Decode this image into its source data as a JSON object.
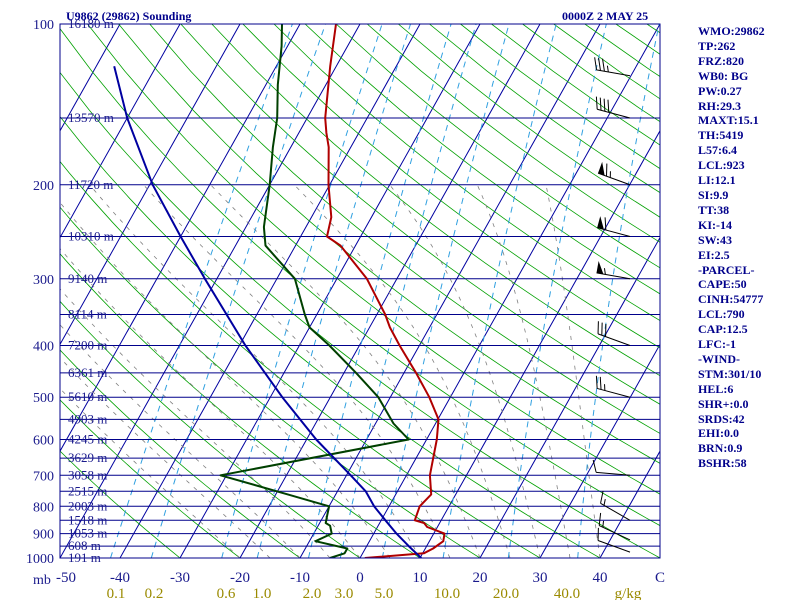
{
  "header": {
    "station": "U9862 (29862) Sounding",
    "time": "0000Z  2 MAY 25"
  },
  "indices": [
    "WMO:29862",
    "TP:262",
    "FRZ:820",
    "WB0: BG",
    "PW:0.27",
    "RH:29.3",
    "MAXT:15.1",
    "TH:5419",
    "L57:6.4",
    "LCL:923",
    "LI:12.1",
    "SI:9.9",
    "TT:38",
    "KI:-14",
    "SW:43",
    "EI:2.5",
    "-PARCEL-",
    "CAPE:50",
    "CINH:54777",
    "LCL:790",
    "CAP:12.5",
    "LFC:-1",
    "-WIND-",
    "STM:301/10",
    "HEL:6",
    "SHR+:0.0",
    "SRDS:42",
    "EHI:0.0",
    "BRN:0.9",
    "BSHR:58"
  ],
  "chart_data": {
    "type": "line",
    "title": "U9862 (29862) Sounding",
    "xlabel": "",
    "ylabel": "mb",
    "xlim": [
      -50,
      50
    ],
    "ylim": [
      1000,
      100
    ],
    "y_scale": "log",
    "grid": true,
    "pressure_levels": [
      100,
      200,
      300,
      400,
      500,
      600,
      700,
      800,
      900,
      1000
    ],
    "temperature_ticks": [
      "-50",
      "-40",
      "-30",
      "-20",
      "-10",
      "0",
      "10",
      "20",
      "30",
      "40",
      "C"
    ],
    "mixing_ratio_labels": [
      "0.1",
      "0.2",
      "0.6",
      "1.0",
      "2.0",
      "3.0",
      "5.0",
      "10.0",
      "20.0",
      "40.0",
      "g/kg"
    ],
    "height_labels": [
      {
        "p": 100,
        "text": "16180 m"
      },
      {
        "p": 150,
        "text": "13570 m"
      },
      {
        "p": 200,
        "text": "11720 m"
      },
      {
        "p": 250,
        "text": "10310 m"
      },
      {
        "p": 300,
        "text": "9140 m"
      },
      {
        "p": 350,
        "text": "8114 m"
      },
      {
        "p": 400,
        "text": "7200 m"
      },
      {
        "p": 450,
        "text": "6361 m"
      },
      {
        "p": 500,
        "text": "5610 m"
      },
      {
        "p": 550,
        "text": "4903 m"
      },
      {
        "p": 600,
        "text": "4245 m"
      },
      {
        "p": 650,
        "text": "3629 m"
      },
      {
        "p": 700,
        "text": "3058 m"
      },
      {
        "p": 750,
        "text": "2515 m"
      },
      {
        "p": 800,
        "text": "2003 m"
      },
      {
        "p": 850,
        "text": "1518 m"
      },
      {
        "p": 900,
        "text": "1053 m"
      },
      {
        "p": 950,
        "text": "608 m"
      },
      {
        "p": 1000,
        "text": "191 m"
      }
    ],
    "series": [
      {
        "key": "temperature",
        "color": "#b00000",
        "points": [
          [
            1000,
            0.8
          ],
          [
            980,
            10.2
          ],
          [
            960,
            11.3
          ],
          [
            930,
            12.3
          ],
          [
            900,
            11.8
          ],
          [
            875,
            8.3
          ],
          [
            860,
            7.4
          ],
          [
            850,
            5.6
          ],
          [
            800,
            5.1
          ],
          [
            760,
            5.9
          ],
          [
            700,
            3.9
          ],
          [
            600,
            1.7
          ],
          [
            550,
            0.1
          ],
          [
            500,
            -3.5
          ],
          [
            450,
            -8.0
          ],
          [
            400,
            -13.3
          ],
          [
            370,
            -16.6
          ],
          [
            350,
            -18.6
          ],
          [
            300,
            -25.0
          ],
          [
            260,
            -32.5
          ],
          [
            250,
            -35.6
          ],
          [
            230,
            -36.7
          ],
          [
            200,
            -40.2
          ],
          [
            170,
            -43.7
          ],
          [
            160,
            -45.4
          ],
          [
            150,
            -47.0
          ],
          [
            120,
            -51.0
          ],
          [
            100,
            -54.0
          ]
        ]
      },
      {
        "key": "dewpoint",
        "color": "#004000",
        "points": [
          [
            1000,
            -5.0
          ],
          [
            980,
            -3.0
          ],
          [
            960,
            -3.0
          ],
          [
            930,
            -9.0
          ],
          [
            900,
            -7.0
          ],
          [
            870,
            -8.0
          ],
          [
            860,
            -9.0
          ],
          [
            830,
            -9.5
          ],
          [
            800,
            -10.0
          ],
          [
            760,
            -18.0
          ],
          [
            700,
            -31.0
          ],
          [
            600,
            -3.0
          ],
          [
            560,
            -7.0
          ],
          [
            500,
            -12.0
          ],
          [
            450,
            -18.0
          ],
          [
            400,
            -25.0
          ],
          [
            370,
            -30.0
          ],
          [
            350,
            -32.0
          ],
          [
            300,
            -37.0
          ],
          [
            260,
            -45.0
          ],
          [
            240,
            -47.0
          ],
          [
            200,
            -50.0
          ],
          [
            170,
            -53.0
          ],
          [
            150,
            -55.0
          ],
          [
            130,
            -58.0
          ],
          [
            110,
            -61.0
          ],
          [
            100,
            -63.0
          ]
        ]
      },
      {
        "key": "parcel",
        "color": "#0000a0",
        "points": [
          [
            1000,
            10.2
          ],
          [
            950,
            7.0
          ],
          [
            900,
            3.8
          ],
          [
            850,
            0.7
          ],
          [
            800,
            -2.5
          ],
          [
            750,
            -5.3
          ],
          [
            700,
            -9.3
          ],
          [
            600,
            -18.4
          ],
          [
            500,
            -28.0
          ],
          [
            400,
            -39.0
          ],
          [
            300,
            -52.0
          ],
          [
            250,
            -60.0
          ],
          [
            200,
            -69.5
          ],
          [
            150,
            -80.0
          ],
          [
            120,
            -87.0
          ]
        ]
      }
    ],
    "wind_barbs": [
      {
        "p": 975,
        "dir": 290,
        "spd": 10
      },
      {
        "p": 925,
        "dir": 295,
        "spd": 15
      },
      {
        "p": 850,
        "dir": 300,
        "spd": 15
      },
      {
        "p": 700,
        "dir": 275,
        "spd": 10
      },
      {
        "p": 500,
        "dir": 285,
        "spd": 25
      },
      {
        "p": 400,
        "dir": 290,
        "spd": 30
      },
      {
        "p": 300,
        "dir": 280,
        "spd": 55
      },
      {
        "p": 250,
        "dir": 285,
        "spd": 60
      },
      {
        "p": 200,
        "dir": 290,
        "spd": 65
      },
      {
        "p": 150,
        "dir": 285,
        "spd": 40
      },
      {
        "p": 125,
        "dir": 280,
        "spd": 35
      }
    ]
  }
}
